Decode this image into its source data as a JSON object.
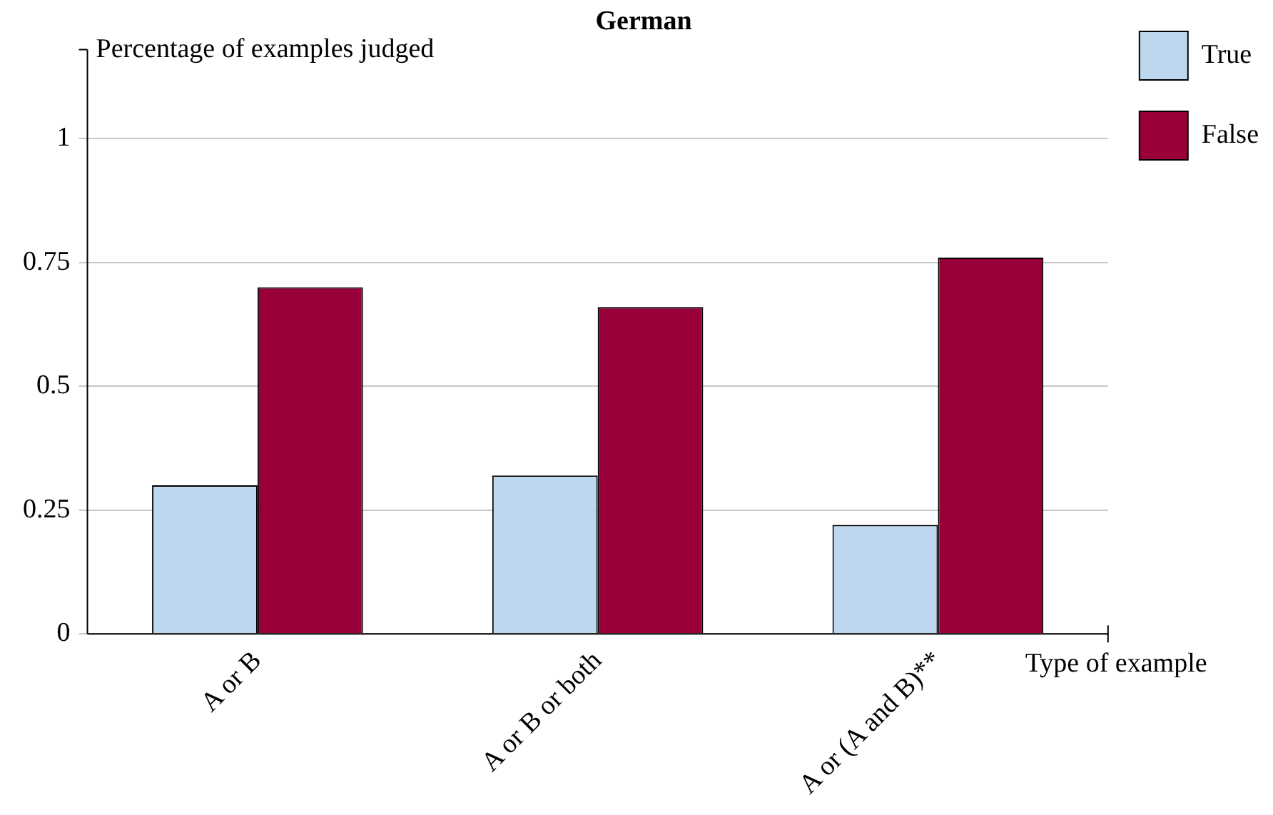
{
  "chart_data": {
    "type": "bar",
    "title": "German",
    "xlabel": "Type of example",
    "ylabel": "Percentage of examples judged",
    "categories": [
      "A or B",
      "A or B or both",
      "A or (A and B)**"
    ],
    "series": [
      {
        "name": "True",
        "color": "#bdd7ee",
        "values": [
          0.3,
          0.32,
          0.22
        ]
      },
      {
        "name": "False",
        "color": "#990039",
        "values": [
          0.7,
          0.66,
          0.76
        ]
      }
    ],
    "ylim": [
      0,
      1.18
    ],
    "yticks": [
      0,
      0.25,
      0.5,
      0.75,
      1
    ],
    "grid": "y",
    "legend": "top right"
  }
}
